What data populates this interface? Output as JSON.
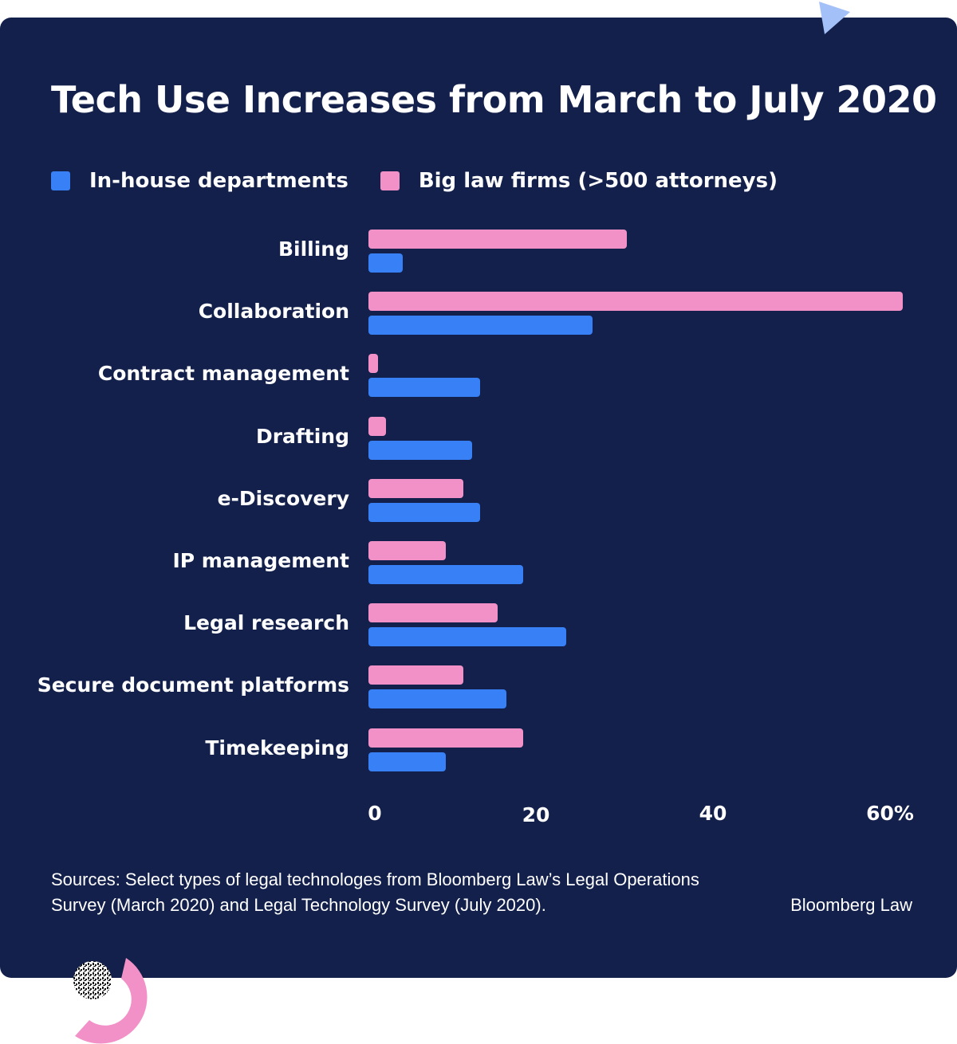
{
  "chart_data": {
    "type": "bar",
    "orientation": "horizontal",
    "title": "Tech Use Increases from March to July 2020",
    "xlabel": "",
    "ylabel": "",
    "xlim": [
      0,
      60
    ],
    "x_ticks": [
      "0",
      "20",
      "40",
      "60%"
    ],
    "x_tick_values": [
      0,
      20,
      40,
      60
    ],
    "grid": false,
    "legend_position": "top-left",
    "categories": [
      "Billing",
      "Collaboration",
      "Contract management",
      "Drafting",
      "e-Discovery",
      "IP management",
      "Legal research",
      "Secure document platforms",
      "Timekeeping"
    ],
    "series": [
      {
        "name": "Big law firms (>500 attorneys)",
        "color": "#f291c7",
        "values": [
          30,
          62,
          1,
          2,
          11,
          9,
          15,
          11,
          18
        ]
      },
      {
        "name": "In-house departments",
        "color": "#3780f6",
        "values": [
          4,
          26,
          13,
          12,
          13,
          18,
          23,
          16,
          9
        ]
      }
    ]
  },
  "legend": [
    {
      "label": "In-house departments",
      "color": "#3780f6"
    },
    {
      "label": "Big law firms (>500 attorneys)",
      "color": "#f291c7"
    }
  ],
  "footer": {
    "source": "Sources: Select types of legal technologes from Bloomberg Law’s Legal Operations Survey (March 2020) and Legal Technology Survey (July 2020).",
    "brand": "Bloomberg Law"
  },
  "colors": {
    "background": "#13204b",
    "accent_blue_light": "#a4c0f8",
    "accent_pink": "#f291c7"
  }
}
